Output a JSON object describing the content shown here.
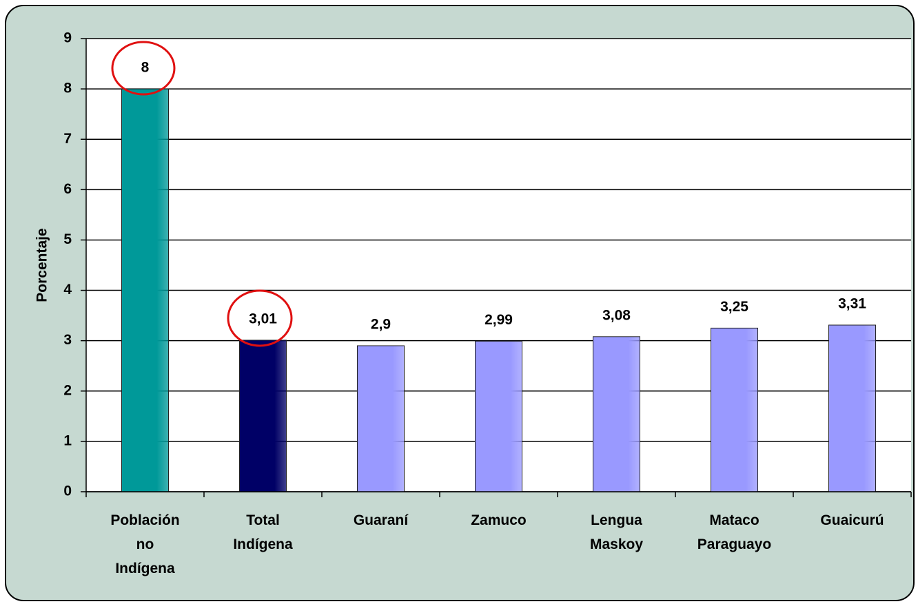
{
  "chart_data": {
    "type": "bar",
    "ylabel": "Porcentaje",
    "categories": [
      "Población no Indígena",
      "Total Indígena",
      "Guaraní",
      "Zamuco",
      "Lengua Maskoy",
      "Mataco Paraguayo",
      "Guaicurú"
    ],
    "values": [
      8,
      3.01,
      2.9,
      2.99,
      3.08,
      3.25,
      3.31
    ],
    "value_labels": [
      "8",
      "3,01",
      "2,9",
      "2,99",
      "3,08",
      "3,25",
      "3,31"
    ],
    "colors": [
      "#009999",
      "#000066",
      "#9999ff",
      "#9999ff",
      "#9999ff",
      "#9999ff",
      "#9999ff"
    ],
    "ylim": [
      0,
      9
    ],
    "yticks": [
      0,
      1,
      2,
      3,
      4,
      5,
      6,
      7,
      8,
      9
    ],
    "grid": true
  }
}
